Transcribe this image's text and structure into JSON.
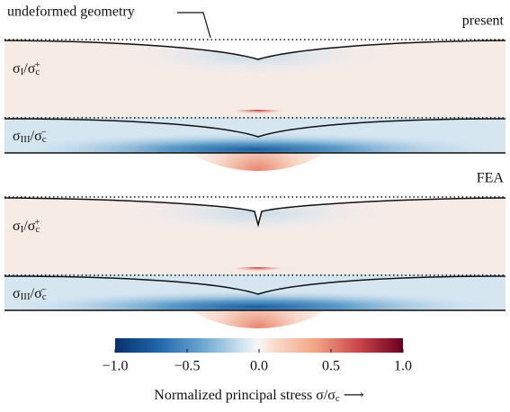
{
  "annotation": "undeformed geometry",
  "panels": [
    {
      "title": "present",
      "labels": [
        [
          "σ",
          "I",
          "/σ",
          "c",
          "+"
        ],
        [
          "σ",
          "III",
          "/σ",
          "c",
          "−"
        ]
      ]
    },
    {
      "title": "FEA",
      "labels": [
        [
          "σ",
          "I",
          "/σ",
          "c",
          "+"
        ],
        [
          "σ",
          "III",
          "/σ",
          "c",
          "−"
        ]
      ]
    }
  ],
  "colorbar": {
    "range": [
      -1,
      1
    ],
    "ticks": [
      {
        "value": -1,
        "label": "−1.0"
      },
      {
        "value": -0.5,
        "label": "−0.5"
      },
      {
        "value": 0,
        "label": "0.0"
      },
      {
        "value": 0.5,
        "label": "0.5"
      },
      {
        "value": 1,
        "label": "1.0"
      }
    ],
    "label": [
      "Normalized principal stress σ/σ",
      "c",
      " ⟶"
    ]
  }
}
